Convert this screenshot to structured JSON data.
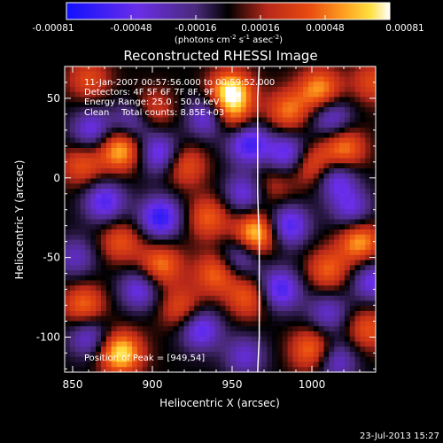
{
  "colorbar": {
    "ticks": [
      "-0.00081",
      "-0.00048",
      "-0.00016",
      "0.00016",
      "0.00048",
      "0.00081"
    ],
    "unit_main": "(photons cm",
    "unit_exp1": "-2",
    "unit_mid": " s",
    "unit_exp2": "-1",
    "unit_mid2": " asec",
    "unit_exp3": "-2",
    "unit_end": ")"
  },
  "chart_data": {
    "type": "heatmap",
    "title": "Reconstructed RHESSI Image",
    "xlabel": "Heliocentric X (arcsec)",
    "ylabel": "Heliocentric Y (arcsec)",
    "xlim": [
      845,
      1040
    ],
    "ylim": [
      -122,
      70
    ],
    "x_ticks": [
      850,
      900,
      950,
      1000
    ],
    "y_ticks": [
      50,
      0,
      -50,
      -100
    ],
    "color_scale": {
      "min": -0.00081,
      "max": 0.00081,
      "colormap": "RHESSI blue-purple-black-red-yellow-white"
    },
    "peak": {
      "x": 949,
      "y": 54,
      "intensity": 0.00081
    },
    "sources": [
      {
        "x": 949,
        "y": 54,
        "v": 1.0
      },
      {
        "x": 950,
        "y": 38,
        "v": 0.55
      },
      {
        "x": 860,
        "y": 62,
        "v": 0.45
      },
      {
        "x": 880,
        "y": 18,
        "v": 0.85
      },
      {
        "x": 856,
        "y": 8,
        "v": 0.5
      },
      {
        "x": 900,
        "y": 42,
        "v": 0.45
      },
      {
        "x": 920,
        "y": 8,
        "v": 0.55
      },
      {
        "x": 985,
        "y": 42,
        "v": 0.6
      },
      {
        "x": 1005,
        "y": 55,
        "v": 0.75
      },
      {
        "x": 1020,
        "y": 18,
        "v": 0.7
      },
      {
        "x": 1000,
        "y": 8,
        "v": 0.6
      },
      {
        "x": 935,
        "y": -25,
        "v": 0.55
      },
      {
        "x": 965,
        "y": -35,
        "v": 0.95
      },
      {
        "x": 880,
        "y": -40,
        "v": 0.5
      },
      {
        "x": 905,
        "y": -55,
        "v": 0.65
      },
      {
        "x": 940,
        "y": -60,
        "v": 0.6
      },
      {
        "x": 1030,
        "y": -40,
        "v": 0.75
      },
      {
        "x": 1010,
        "y": -58,
        "v": 0.55
      },
      {
        "x": 857,
        "y": -80,
        "v": 0.6
      },
      {
        "x": 880,
        "y": -110,
        "v": 0.95
      },
      {
        "x": 918,
        "y": -82,
        "v": 0.5
      },
      {
        "x": 960,
        "y": -75,
        "v": 0.55
      },
      {
        "x": 1000,
        "y": -108,
        "v": 0.65
      },
      {
        "x": 1035,
        "y": -95,
        "v": 0.5
      },
      {
        "x": 975,
        "y": -5,
        "v": 0.35
      },
      {
        "x": 1038,
        "y": 60,
        "v": 0.45
      },
      {
        "x": 960,
        "y": 22,
        "v": -0.8
      },
      {
        "x": 985,
        "y": 15,
        "v": -0.7
      },
      {
        "x": 1012,
        "y": 38,
        "v": -0.6
      },
      {
        "x": 905,
        "y": 15,
        "v": -0.7
      },
      {
        "x": 935,
        "y": 38,
        "v": -0.65
      },
      {
        "x": 888,
        "y": 35,
        "v": -0.55
      },
      {
        "x": 862,
        "y": 30,
        "v": -0.6
      },
      {
        "x": 870,
        "y": -15,
        "v": -0.7
      },
      {
        "x": 905,
        "y": -25,
        "v": -0.85
      },
      {
        "x": 958,
        "y": -10,
        "v": -0.6
      },
      {
        "x": 985,
        "y": -30,
        "v": -0.75
      },
      {
        "x": 1015,
        "y": 0,
        "v": -0.65
      },
      {
        "x": 1025,
        "y": -20,
        "v": -0.55
      },
      {
        "x": 1038,
        "y": -65,
        "v": -0.6
      },
      {
        "x": 892,
        "y": -70,
        "v": -0.6
      },
      {
        "x": 930,
        "y": -95,
        "v": -0.7
      },
      {
        "x": 955,
        "y": -50,
        "v": -0.55
      },
      {
        "x": 980,
        "y": -70,
        "v": -0.75
      },
      {
        "x": 1010,
        "y": -85,
        "v": -0.5
      },
      {
        "x": 1015,
        "y": -115,
        "v": -0.55
      },
      {
        "x": 958,
        "y": -112,
        "v": -0.5
      },
      {
        "x": 852,
        "y": -50,
        "v": -0.45
      },
      {
        "x": 860,
        "y": -100,
        "v": -0.55
      }
    ],
    "limb": [
      {
        "x": 967,
        "y": 70
      },
      {
        "x": 966,
        "y": 50
      },
      {
        "x": 966,
        "y": 20
      },
      {
        "x": 966,
        "y": -10
      },
      {
        "x": 967,
        "y": -40
      },
      {
        "x": 967,
        "y": -70
      },
      {
        "x": 967,
        "y": -100
      },
      {
        "x": 966,
        "y": -122
      }
    ],
    "annotations": {
      "time": "11-Jan-2007 00:57:56.000 to 00:59:52.000",
      "detectors": "Detectors: 4F 5F 6F 7F 8F, 9F",
      "energy": "Energy Range: 25.0 - 50.0 keV",
      "method": "Clean",
      "counts": "Total counts: 8.85E+03",
      "peak_label": "Position of Peak = [949,54]"
    }
  },
  "footer": {
    "date": "23-Jul-2013 15:27"
  }
}
